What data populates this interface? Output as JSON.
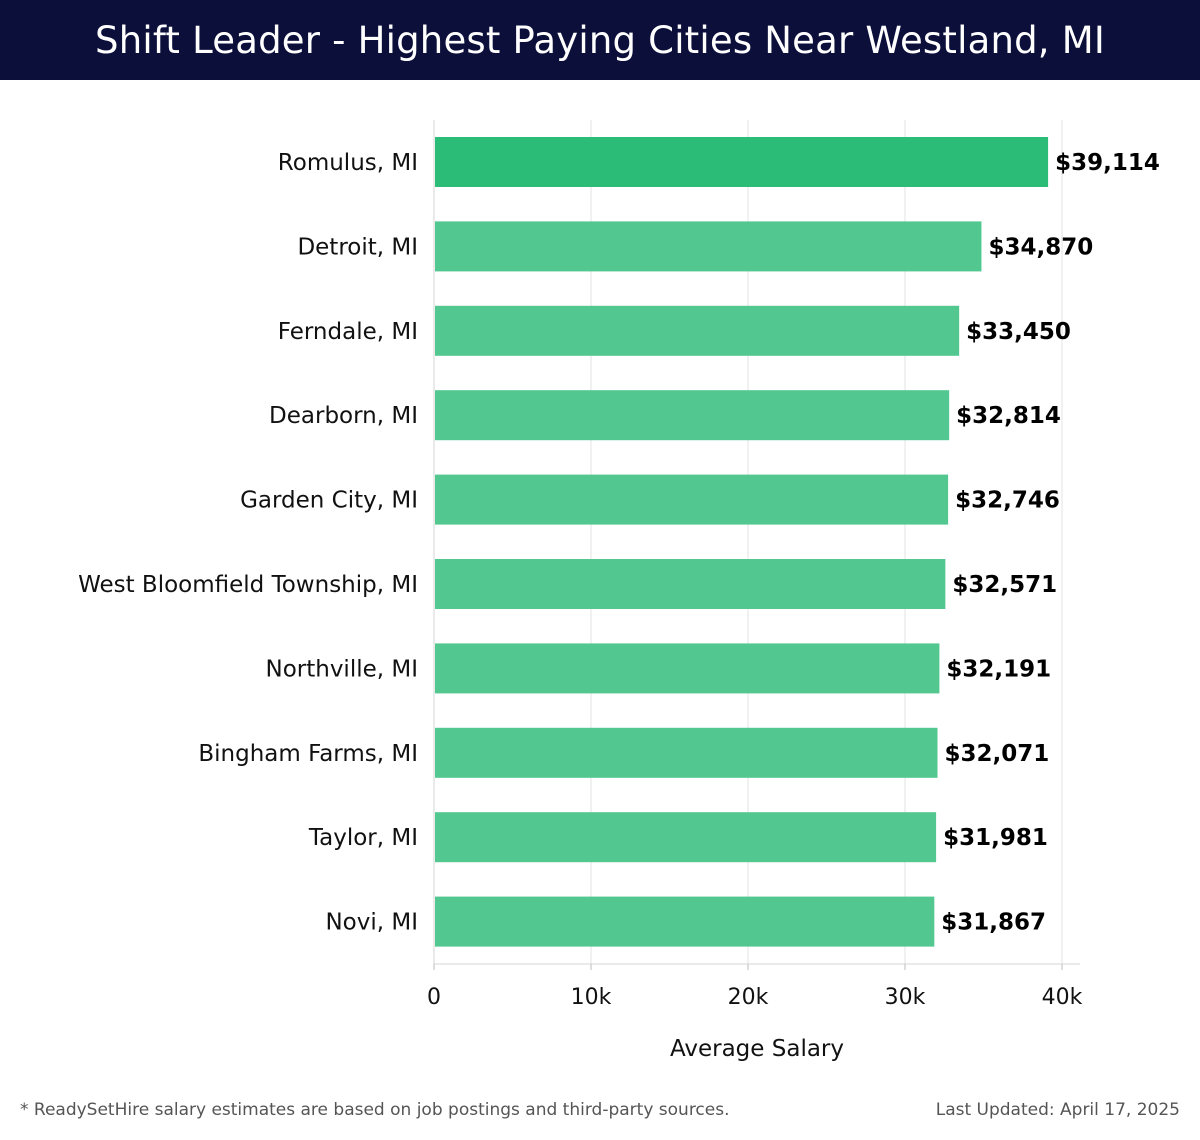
{
  "header": {
    "title": "Shift Leader - Highest Paying Cities Near Westland, MI"
  },
  "footer": {
    "note": "* ReadySetHire salary estimates are based on job postings and third-party sources.",
    "updated": "Last Updated: April 17, 2025"
  },
  "colors": {
    "header_bg": "#0b0f3a",
    "top_bar": "#2bbd77",
    "bar": "#52c890",
    "grid": "#e3e3e3"
  },
  "chart_data": {
    "type": "bar",
    "orientation": "horizontal",
    "title": "Shift Leader - Highest Paying Cities Near Westland, MI",
    "xlabel": "Average Salary",
    "ylabel": "",
    "xlim": [
      0,
      40000
    ],
    "xticks": [
      0,
      10000,
      20000,
      30000,
      40000
    ],
    "xtick_labels": [
      "0",
      "10k",
      "20k",
      "30k",
      "40k"
    ],
    "grid": true,
    "categories": [
      "Romulus, MI",
      "Detroit, MI",
      "Ferndale, MI",
      "Dearborn, MI",
      "Garden City, MI",
      "West Bloomfield Township, MI",
      "Northville, MI",
      "Bingham Farms, MI",
      "Taylor, MI",
      "Novi, MI"
    ],
    "values": [
      39114,
      34870,
      33450,
      32814,
      32746,
      32571,
      32191,
      32071,
      31981,
      31867
    ],
    "value_labels": [
      "$39,114",
      "$34,870",
      "$33,450",
      "$32,814",
      "$32,746",
      "$32,571",
      "$32,191",
      "$32,071",
      "$31,981",
      "$31,867"
    ]
  }
}
